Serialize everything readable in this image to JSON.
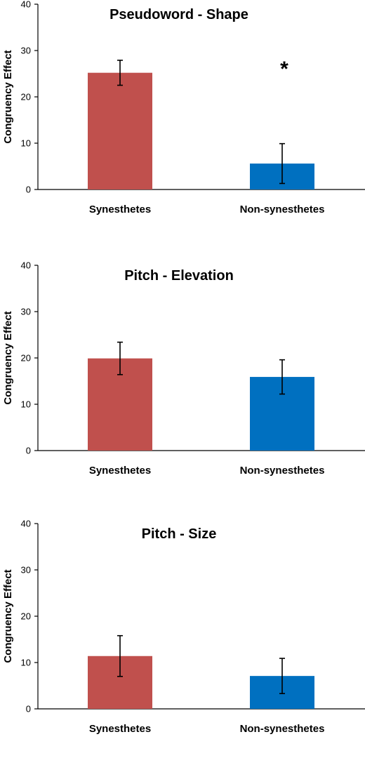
{
  "chart_data": [
    {
      "type": "bar",
      "title": "Pseudoword - Shape",
      "ylabel": "Congruency Effect",
      "xlabel": "",
      "ylim": [
        0,
        40
      ],
      "yticks": [
        0,
        10,
        20,
        30,
        40
      ],
      "categories": [
        "Synesthetes",
        "Non-synesthetes"
      ],
      "values": [
        25.2,
        5.6
      ],
      "errors": [
        2.7,
        4.3
      ],
      "colors": [
        "#C0504D",
        "#0070C0"
      ],
      "annotations": [
        {
          "text": "*",
          "category": "Non-synesthetes"
        }
      ],
      "grid": false
    },
    {
      "type": "bar",
      "title": "Pitch - Elevation",
      "ylabel": "Congruency Effect",
      "xlabel": "",
      "ylim": [
        0,
        40
      ],
      "yticks": [
        0,
        10,
        20,
        30,
        40
      ],
      "categories": [
        "Synesthetes",
        "Non-synesthetes"
      ],
      "values": [
        19.9,
        15.9
      ],
      "errors": [
        3.5,
        3.7
      ],
      "colors": [
        "#C0504D",
        "#0070C0"
      ],
      "annotations": [],
      "grid": false
    },
    {
      "type": "bar",
      "title": "Pitch - Size",
      "ylabel": "Congruency Effect",
      "xlabel": "",
      "ylim": [
        0,
        40
      ],
      "yticks": [
        0,
        10,
        20,
        30,
        40
      ],
      "categories": [
        "Synesthetes",
        "Non-synesthetes"
      ],
      "values": [
        11.4,
        7.1
      ],
      "errors": [
        4.4,
        3.8
      ],
      "colors": [
        "#C0504D",
        "#0070C0"
      ],
      "annotations": [],
      "grid": false
    }
  ]
}
